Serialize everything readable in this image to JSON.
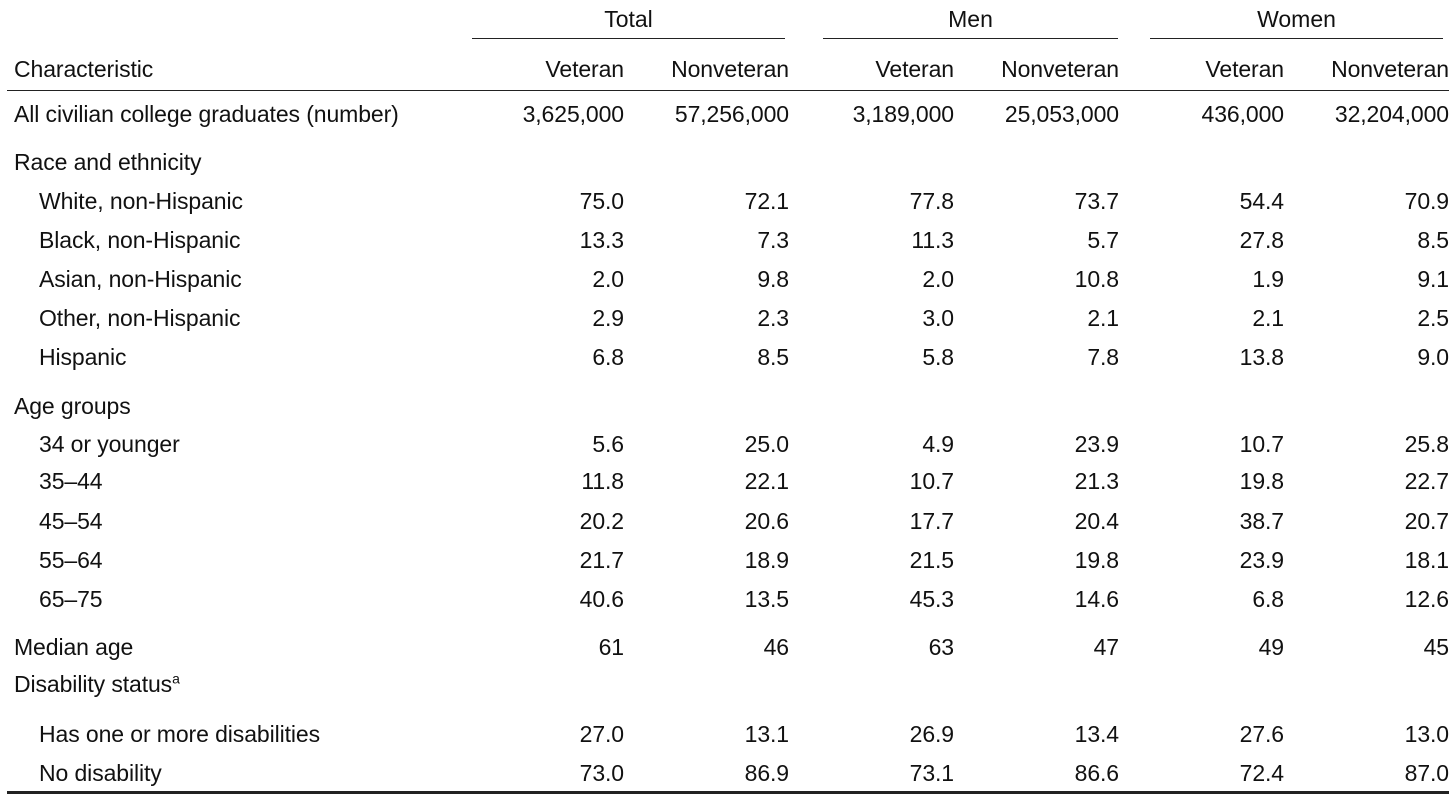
{
  "groups": [
    "Total",
    "Men",
    "Women"
  ],
  "header": {
    "characteristic": "Characteristic",
    "columns": [
      "Veteran",
      "Nonveteran",
      "Veteran",
      "Nonveteran",
      "Veteran",
      "Nonveteran"
    ]
  },
  "rows": [
    {
      "label": "All civilian college graduates (number)",
      "values": [
        "3,625,000",
        "57,256,000",
        "3,189,000",
        "25,053,000",
        "436,000",
        "32,204,000"
      ]
    },
    {
      "label": "Race and ethnicity",
      "section": true,
      "values": []
    },
    {
      "label": "White, non-Hispanic",
      "indent": true,
      "values": [
        "75.0",
        "72.1",
        "77.8",
        "73.7",
        "54.4",
        "70.9"
      ]
    },
    {
      "label": "Black, non-Hispanic",
      "indent": true,
      "values": [
        "13.3",
        "7.3",
        "11.3",
        "5.7",
        "27.8",
        "8.5"
      ]
    },
    {
      "label": "Asian, non-Hispanic",
      "indent": true,
      "values": [
        "2.0",
        "9.8",
        "2.0",
        "10.8",
        "1.9",
        "9.1"
      ]
    },
    {
      "label": "Other, non-Hispanic",
      "indent": true,
      "values": [
        "2.9",
        "2.3",
        "3.0",
        "2.1",
        "2.1",
        "2.5"
      ]
    },
    {
      "label": "Hispanic",
      "indent": true,
      "values": [
        "6.8",
        "8.5",
        "5.8",
        "7.8",
        "13.8",
        "9.0"
      ]
    },
    {
      "label": "Age groups",
      "section": true,
      "values": []
    },
    {
      "label": "34 or younger",
      "indent": true,
      "values": [
        "5.6",
        "25.0",
        "4.9",
        "23.9",
        "10.7",
        "25.8"
      ]
    },
    {
      "label": "35–44",
      "indent": true,
      "values": [
        "11.8",
        "22.1",
        "10.7",
        "21.3",
        "19.8",
        "22.7"
      ]
    },
    {
      "label": "45–54",
      "indent": true,
      "values": [
        "20.2",
        "20.6",
        "17.7",
        "20.4",
        "38.7",
        "20.7"
      ]
    },
    {
      "label": "55–64",
      "indent": true,
      "values": [
        "21.7",
        "18.9",
        "21.5",
        "19.8",
        "23.9",
        "18.1"
      ]
    },
    {
      "label": "65–75",
      "indent": true,
      "values": [
        "40.6",
        "13.5",
        "45.3",
        "14.6",
        "6.8",
        "12.6"
      ]
    },
    {
      "label": "Median age",
      "values": [
        "61",
        "46",
        "63",
        "47",
        "49",
        "45"
      ]
    },
    {
      "label": "Disability status",
      "footnote": "a",
      "section": true,
      "values": []
    },
    {
      "label": "Has one or more disabilities",
      "indent": true,
      "values": [
        "27.0",
        "13.1",
        "26.9",
        "13.4",
        "27.6",
        "13.0"
      ]
    },
    {
      "label": "No disability",
      "indent": true,
      "values": [
        "73.0",
        "86.9",
        "73.1",
        "86.6",
        "72.4",
        "87.0"
      ]
    }
  ]
}
